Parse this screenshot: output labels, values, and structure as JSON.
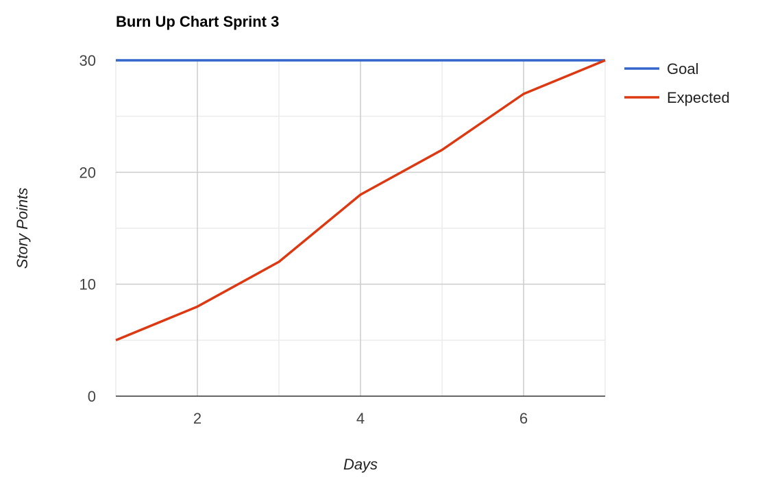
{
  "chart_data": {
    "type": "line",
    "title": "Burn Up Chart Sprint 3",
    "xlabel": "Days",
    "ylabel": "Story Points",
    "x": [
      1,
      2,
      3,
      4,
      5,
      6,
      7
    ],
    "xlim": [
      1,
      7
    ],
    "ylim": [
      0,
      30
    ],
    "x_ticks": [
      2,
      4,
      6
    ],
    "y_ticks": [
      0,
      10,
      20,
      30
    ],
    "grid": true,
    "legend": "right",
    "series": [
      {
        "name": "Goal",
        "color": "#3366cc",
        "values": [
          30,
          30,
          30,
          30,
          30,
          30,
          30
        ]
      },
      {
        "name": "Expected",
        "color": "#dc3912",
        "values": [
          5,
          8,
          12,
          18,
          22,
          27,
          30
        ]
      }
    ]
  }
}
